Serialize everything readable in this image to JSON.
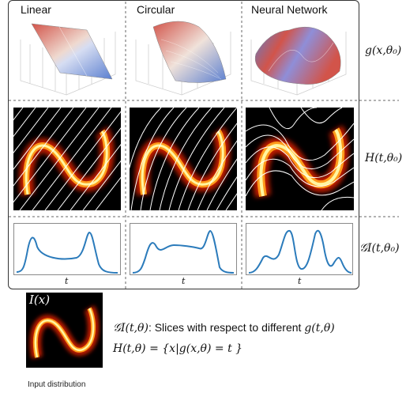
{
  "columns": [
    {
      "title": "Linear"
    },
    {
      "title": "Circular"
    },
    {
      "title": "Neural Network"
    }
  ],
  "row_labels": {
    "surface": "g(x,θ₀)",
    "contour": "H(t,θ₀)",
    "slice": "𝒢I(t,θ₀)"
  },
  "axis_label": "t",
  "input_image": {
    "label": "I(x)",
    "caption": "Input distribution"
  },
  "legend": {
    "line1_lhs": "𝒢I(t,θ)",
    "line1_text": ": Slices with respect to different ",
    "line1_rhs": "g(t,θ)",
    "line2": "H(t,θ) = {x|g(x,θ) = t }"
  },
  "colors": {
    "curve": "#2b7bbb",
    "surface_red": "#d2544a",
    "surface_blue": "#5b7fd0",
    "heat_core": "#fff6a0",
    "heat_mid": "#ff9a1a",
    "heat_edge": "#c21e06"
  }
}
